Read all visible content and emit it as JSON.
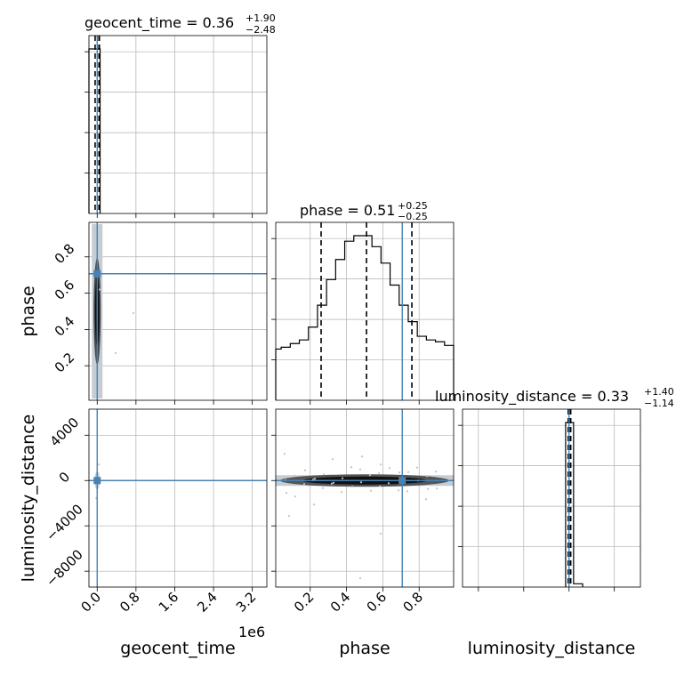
{
  "colors": {
    "truth": "#4682b4",
    "line": "#000000",
    "grid": "#b0b0b0",
    "scatter": "#bfc5cc"
  },
  "chart_data": {
    "type": "corner",
    "params": [
      "geocent_time",
      "phase",
      "luminosity_distance"
    ],
    "titles": {
      "geocent_time": {
        "name": "geocent_time",
        "value": "0.36",
        "plus": "+1.90",
        "minus": "−2.48"
      },
      "phase": {
        "name": "phase",
        "value": "0.51",
        "plus": "+0.25",
        "minus": "−0.25"
      },
      "luminosity_distance": {
        "name": "luminosity_distance",
        "value": "0.33",
        "plus": "+1.40",
        "minus": "−1.14"
      }
    },
    "axis_labels": {
      "x": [
        "geocent_time",
        "phase",
        "luminosity_distance"
      ],
      "y": [
        "phase",
        "luminosity_distance"
      ]
    },
    "offset_text": "1e6",
    "ranges": {
      "geocent_time": [
        -170000,
        3500000
      ],
      "phase": [
        0.01,
        0.99
      ],
      "luminosity_distance": [
        -9400,
        6300
      ]
    },
    "ticks": {
      "geocent_time": {
        "values": [
          0,
          800000,
          1600000,
          2400000,
          3200000
        ],
        "labels": [
          "0.0",
          "0.8",
          "1.6",
          "2.4",
          "3.2"
        ]
      },
      "phase": {
        "values": [
          0.2,
          0.4,
          0.6,
          0.8
        ],
        "labels": [
          "0.2",
          "0.4",
          "0.6",
          "0.8"
        ]
      },
      "luminosity_distance": {
        "values": [
          -8000,
          -4000,
          0,
          4000
        ],
        "labels": [
          "−8000",
          "−4000",
          "0",
          "4000"
        ]
      }
    },
    "truths": {
      "geocent_time": 0,
      "phase": 0.707,
      "luminosity_distance": 0
    },
    "quantiles": {
      "geocent_time": [
        -2.12,
        0.36,
        2.26
      ],
      "phase": [
        0.26,
        0.51,
        0.76
      ],
      "luminosity_distance": [
        -0.81,
        0.33,
        1.73
      ]
    },
    "hist_geocent_time": {
      "edges": [
        -170000,
        -20000,
        60000
      ],
      "counts": [
        1,
        1
      ]
    },
    "hist_phase": {
      "edges": [
        0.01,
        0.04,
        0.09,
        0.14,
        0.19,
        0.24,
        0.29,
        0.34,
        0.39,
        0.44,
        0.49,
        0.54,
        0.59,
        0.64,
        0.69,
        0.74,
        0.79,
        0.84,
        0.89,
        0.94,
        0.99
      ],
      "counts": [
        0.28,
        0.29,
        0.31,
        0.33,
        0.4,
        0.52,
        0.66,
        0.77,
        0.87,
        0.9,
        0.9,
        0.84,
        0.75,
        0.63,
        0.52,
        0.43,
        0.35,
        0.33,
        0.32,
        0.3
      ]
    },
    "hist_luminosity_distance": {
      "edges": [
        -300,
        400,
        1200
      ],
      "counts": [
        1,
        0.02
      ]
    }
  }
}
